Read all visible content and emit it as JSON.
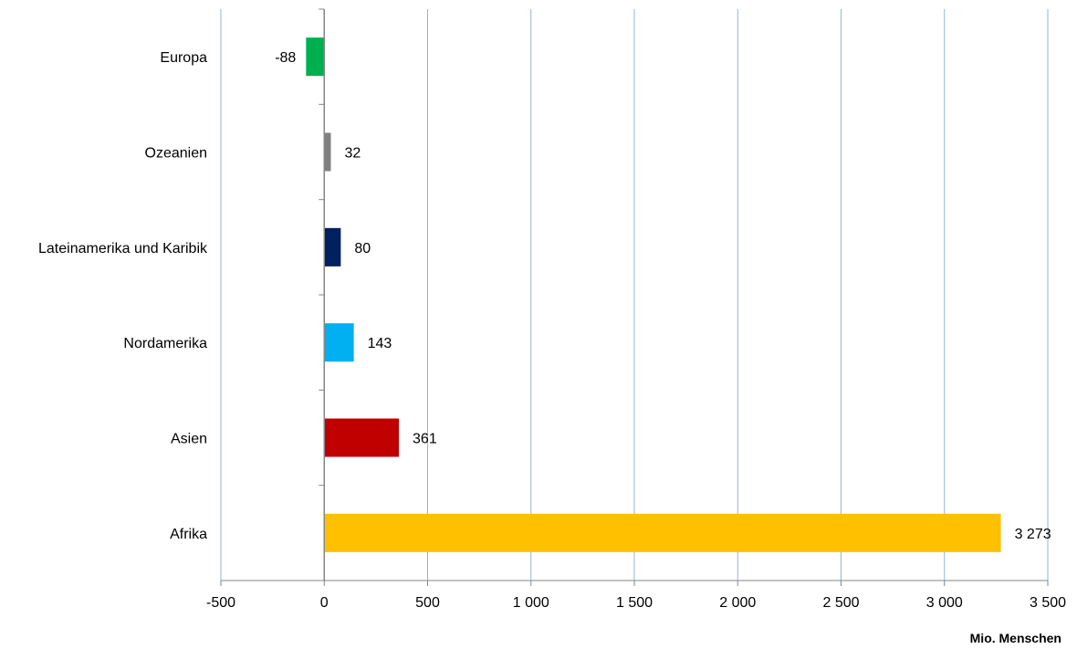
{
  "chart_data": {
    "type": "bar",
    "orientation": "horizontal",
    "categories": [
      "Europa",
      "Ozeanien",
      "Lateinamerika und Karibik",
      "Nordamerika",
      "Asien",
      "Afrika"
    ],
    "values": [
      -88,
      32,
      80,
      143,
      361,
      3273
    ],
    "value_labels": [
      "-88",
      "32",
      "80",
      "143",
      "361",
      "3 273"
    ],
    "bar_colors": [
      "#00b050",
      "#808080",
      "#002060",
      "#00b0f0",
      "#c00000",
      "#ffc000"
    ],
    "xlim": [
      -500,
      3500
    ],
    "x_ticks": [
      -500,
      0,
      500,
      1000,
      1500,
      2000,
      2500,
      3000,
      3500
    ],
    "x_tick_labels": [
      "-500",
      "0",
      "500",
      "1 000",
      "1 500",
      "2 000",
      "2 500",
      "3 000",
      "3 500"
    ],
    "xlabel": "Mio. Menschen",
    "ylabel": "",
    "title": "",
    "grid": "vertical",
    "gridline_color": "#95b3d7",
    "legend": "none"
  }
}
